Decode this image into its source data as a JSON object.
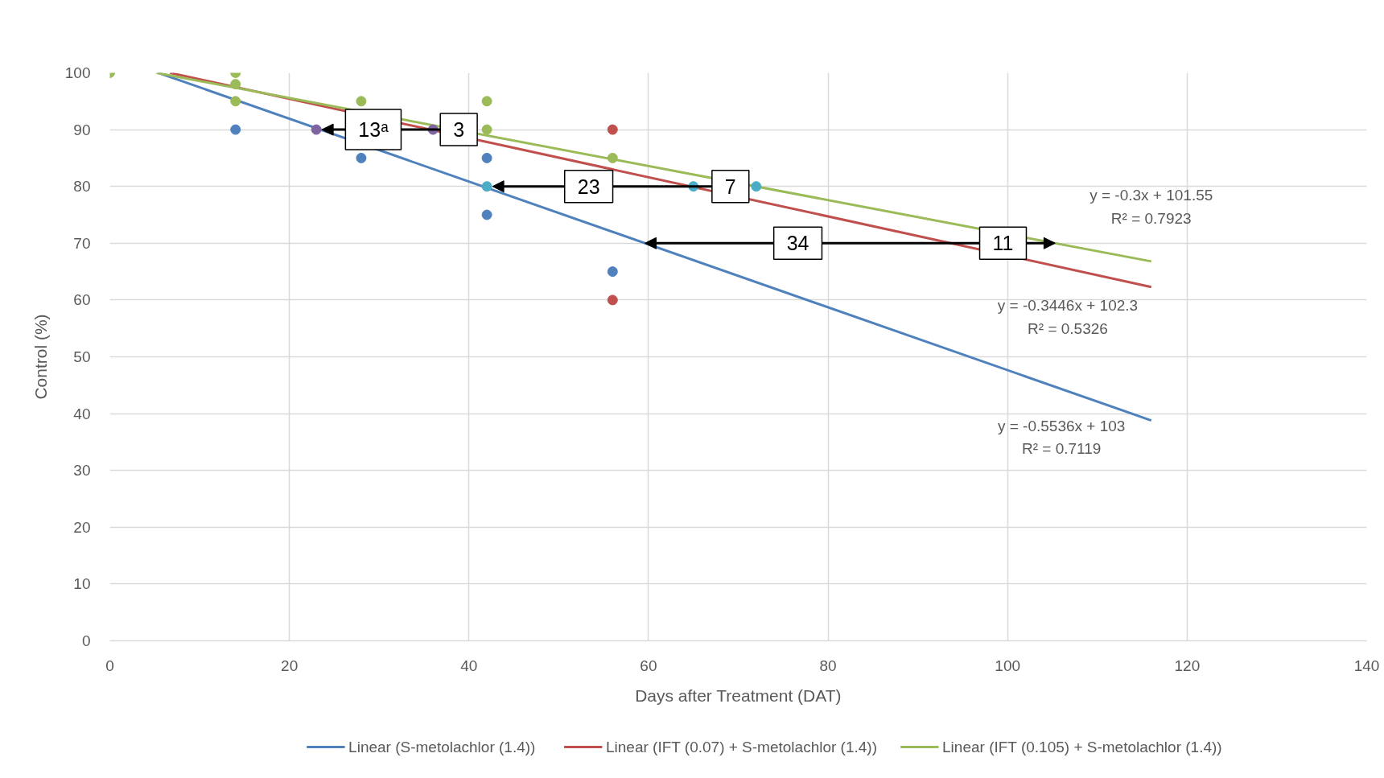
{
  "chart_data": {
    "type": "scatter",
    "xlabel": "Days after Treatment (DAT)",
    "ylabel": "Control (%)",
    "xlim": [
      0,
      140
    ],
    "ylim": [
      0,
      100
    ],
    "xticks": [
      0,
      20,
      40,
      60,
      80,
      100,
      120,
      140
    ],
    "yticks": [
      0,
      10,
      20,
      30,
      40,
      50,
      60,
      70,
      80,
      90,
      100
    ],
    "grid": true,
    "legend": "bottom",
    "series": [
      {
        "color": "#4f81bd",
        "marker": "circle",
        "x": [
          14,
          28,
          42,
          42,
          56
        ],
        "values": [
          90,
          85,
          85,
          75,
          65
        ]
      },
      {
        "color": "#c0504d",
        "marker": "circle",
        "x": [
          56,
          56
        ],
        "values": [
          90,
          60
        ]
      },
      {
        "color": "#9bbb59",
        "marker": "circle",
        "x": [
          0,
          14,
          14,
          14,
          28,
          42,
          42,
          56
        ],
        "values": [
          100,
          100,
          98,
          95,
          95,
          95,
          90,
          85
        ]
      },
      {
        "color": "#8064a2",
        "marker": "circle",
        "x": [
          23,
          36
        ],
        "values": [
          90,
          90
        ]
      },
      {
        "color": "#4bacc6",
        "marker": "circle",
        "x": [
          42,
          65,
          72
        ],
        "values": [
          80,
          80,
          80
        ]
      },
      {
        "type": "line",
        "marker": "none",
        "name": "Linear (S-metolachlor (1.4))",
        "color": "#4f81bd",
        "x": [
          5.4,
          116
        ],
        "values": [
          100,
          38.8
        ]
      },
      {
        "type": "line",
        "marker": "none",
        "name": "Linear (IFT (0.07) + S-metolachlor (1.4))",
        "color": "#c0504d",
        "x": [
          6.7,
          116
        ],
        "values": [
          100,
          62.3
        ]
      },
      {
        "type": "line",
        "marker": "none",
        "name": "Linear (IFT (0.105) + S-metolachlor (1.4))",
        "color": "#9bbb59",
        "x": [
          5.2,
          116
        ],
        "values": [
          100,
          66.8
        ]
      }
    ],
    "annotations": [
      {
        "text": "13ᵃ",
        "x": 23,
        "y": 90
      },
      {
        "text": "3",
        "x": 38.6,
        "y": 90
      },
      {
        "text": "23",
        "x": 42,
        "y": 80
      },
      {
        "text": "7",
        "x": 72,
        "y": 80
      },
      {
        "text": "34",
        "x": 59.6,
        "y": 70
      },
      {
        "text": "11",
        "x": 105.3,
        "y": 70
      },
      {
        "text": "y = -0.3x + 101.55\nR² = 0.7923",
        "x": 116,
        "y": 66.8
      },
      {
        "text": "y = -0.3446x + 102.3\nR² = 0.5326",
        "x": 106.7,
        "y": 65.5
      },
      {
        "text": "y = -0.5536x + 103\nR² = 0.7119",
        "x": 106,
        "y": 44.3
      }
    ]
  }
}
